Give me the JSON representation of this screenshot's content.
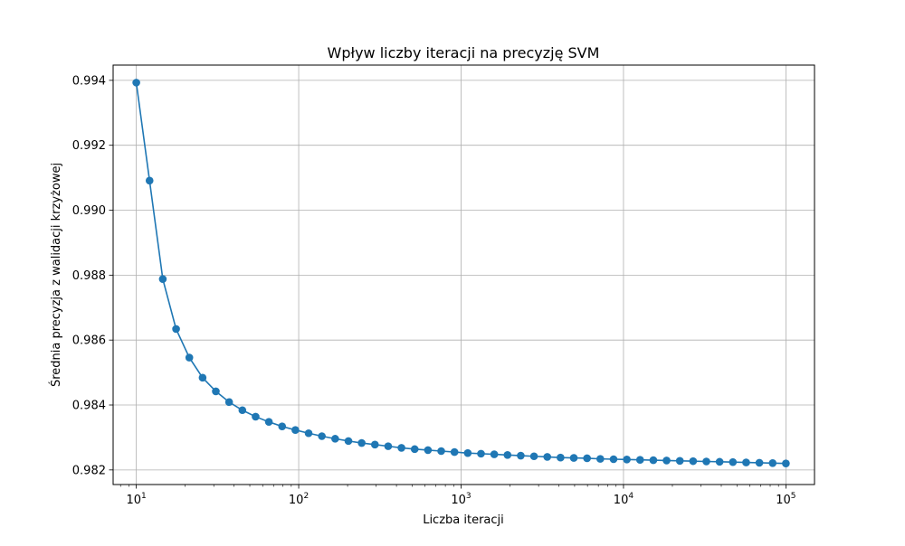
{
  "chart_data": {
    "type": "line",
    "title": "Wpływ liczby iteracji na precyzję SVM",
    "xlabel": "Liczba iteracji",
    "ylabel": "Średnia precyzja z walidacji krzyżowej",
    "x_scale": "log",
    "xlim": [
      7.2,
      150000
    ],
    "ylim": [
      0.98155,
      0.99447
    ],
    "x_ticks": [
      {
        "value": 10,
        "base": "10",
        "exp": "1"
      },
      {
        "value": 100,
        "base": "10",
        "exp": "2"
      },
      {
        "value": 1000,
        "base": "10",
        "exp": "3"
      },
      {
        "value": 10000,
        "base": "10",
        "exp": "4"
      },
      {
        "value": 100000,
        "base": "10",
        "exp": "5"
      }
    ],
    "y_ticks": [
      {
        "value": 0.982,
        "label": "0.982"
      },
      {
        "value": 0.984,
        "label": "0.984"
      },
      {
        "value": 0.986,
        "label": "0.986"
      },
      {
        "value": 0.988,
        "label": "0.988"
      },
      {
        "value": 0.99,
        "label": "0.990"
      },
      {
        "value": 0.992,
        "label": "0.992"
      },
      {
        "value": 0.994,
        "label": "0.994"
      }
    ],
    "grid": true,
    "color": "#1f77b4",
    "marker": "circle",
    "series": [
      {
        "x": [
          10,
          12.07,
          14.56,
          17.58,
          21.21,
          25.6,
          30.89,
          37.28,
          44.99,
          54.29,
          65.51,
          79.06,
          95.41,
          115.1,
          138.9,
          167.7,
          202.4,
          244.2,
          294.7,
          355.6,
          429.2,
          517.9,
          625.1,
          754.3,
          910.3,
          1099,
          1326,
          1600,
          1931,
          2330,
          2812,
          3393,
          4095,
          4942,
          5964,
          7197,
          8685,
          10481,
          12649,
          15264,
          18421,
          22230,
          26827,
          32375,
          39069,
          47149,
          56898,
          68665,
          82864,
          100000
        ],
        "y": [
          0.99393,
          0.99091,
          0.98788,
          0.98634,
          0.98546,
          0.98484,
          0.98442,
          0.98409,
          0.98384,
          0.98364,
          0.98348,
          0.98334,
          0.98323,
          0.98313,
          0.98304,
          0.98296,
          0.98289,
          0.98283,
          0.98278,
          0.98273,
          0.98268,
          0.98264,
          0.98261,
          0.98258,
          0.98255,
          0.98252,
          0.9825,
          0.98248,
          0.98246,
          0.98244,
          0.98242,
          0.9824,
          0.98238,
          0.98237,
          0.98236,
          0.98234,
          0.98233,
          0.98232,
          0.98231,
          0.9823,
          0.98229,
          0.98228,
          0.98227,
          0.98226,
          0.98225,
          0.98224,
          0.98223,
          0.98222,
          0.98221,
          0.9822
        ]
      }
    ]
  }
}
